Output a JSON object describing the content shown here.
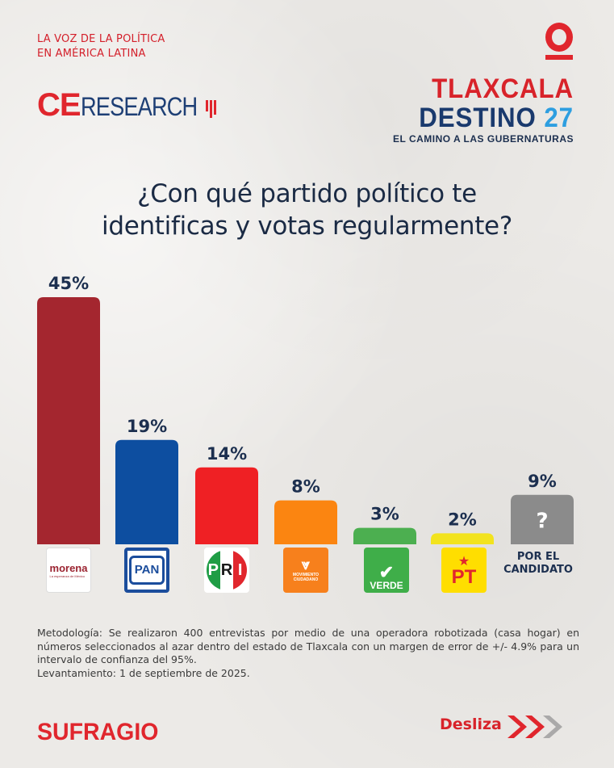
{
  "header": {
    "tagline_line1": "LA VOZ DE LA POLÍTICA",
    "tagline_line2": "EN AMÉRICA LATINA",
    "brand_ce": "CE",
    "brand_research": "RESEARCH",
    "campaign_line1": "TLAXCALA",
    "campaign_line2_text": "DESTINO",
    "campaign_line2_num": "27",
    "campaign_line3": "EL CAMINO A LAS GUBERNATURAS"
  },
  "chart_data": {
    "type": "bar",
    "title_line1": "¿Con qué partido político te",
    "title_line2": "identificas y votas regularmente?",
    "categories": [
      "morena",
      "PAN",
      "PRI",
      "MOVIMIENTO CIUDADANO",
      "VERDE",
      "PT",
      "POR EL CANDIDATO"
    ],
    "values": [
      45,
      19,
      14,
      8,
      3,
      2,
      9
    ],
    "labels": [
      "45%",
      "19%",
      "14%",
      "8%",
      "3%",
      "2%",
      "9%"
    ],
    "colors": [
      "#a4262f",
      "#0d4ea0",
      "#ef2024",
      "#fb8511",
      "#4caf50",
      "#f2e31e",
      "#8b8b8b"
    ],
    "ylim": [
      0,
      45
    ],
    "grid": false,
    "other_bar_mark": "?"
  },
  "logos": {
    "morena_text": "morena",
    "morena_sub": "La esperanza de México",
    "pan_text": "PAN",
    "pri_letters": [
      "P",
      "R",
      "I"
    ],
    "mc_text": "MOVIMIENTO CIUDADANO",
    "verde_text": "VERDE",
    "pt_text": "PT",
    "candidato_line1": "POR EL",
    "candidato_line2": "CANDIDATO"
  },
  "methodology": {
    "text": "Metodología: Se realizaron 400 entrevistas por medio de una operadora robotizada (casa hogar) en números seleccionados al azar dentro del estado de Tlaxcala con un margen de error de +/- 4.9% para un intervalo de confianza del 95%.",
    "date": "Levantamiento: 1 de septiembre de 2025."
  },
  "footer": {
    "brand": "SUFRAGIO",
    "swipe_label": "Desliza"
  }
}
